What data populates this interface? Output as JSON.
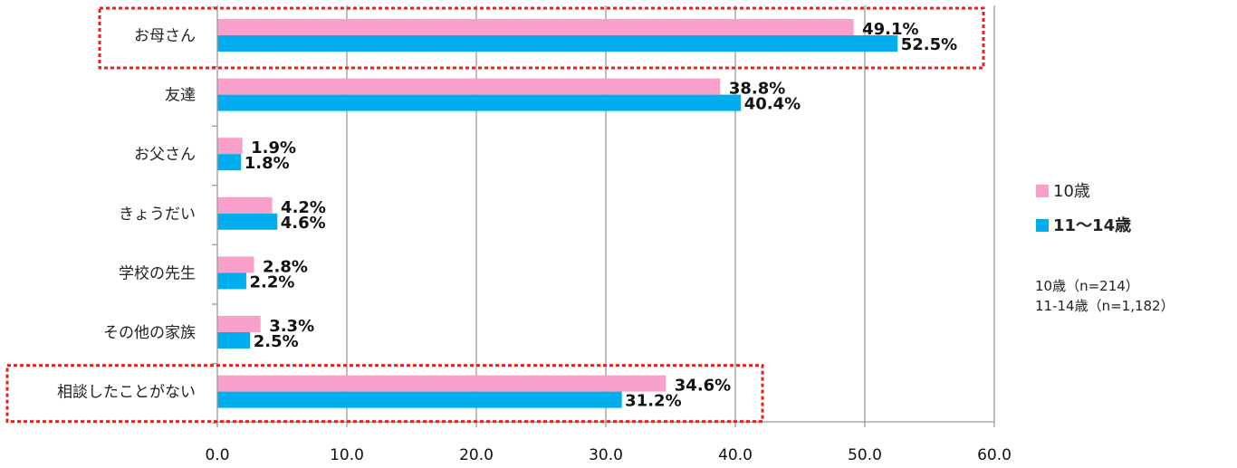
{
  "chart_data": {
    "type": "bar",
    "orientation": "horizontal",
    "categories": [
      "お母さん",
      "友達",
      "お父さん",
      "きょうだい",
      "学校の先生",
      "その他の家族",
      "相談したことがない"
    ],
    "series": [
      {
        "name": "10歳",
        "color": "#f99fcb",
        "values": [
          49.1,
          38.8,
          1.9,
          4.2,
          2.8,
          3.3,
          34.6
        ],
        "labels": [
          "49.1%",
          "38.8%",
          "1.9%",
          "4.2%",
          "2.8%",
          "3.3%",
          "34.6%"
        ]
      },
      {
        "name": "11〜14歳",
        "color": "#00aeef",
        "values": [
          52.5,
          40.4,
          1.8,
          4.6,
          2.2,
          2.5,
          31.2
        ],
        "labels": [
          "52.5%",
          "40.4%",
          "1.8%",
          "4.6%",
          "2.2%",
          "2.5%",
          "31.2%"
        ]
      }
    ],
    "xlim": [
      0,
      60
    ],
    "xticks": [
      0,
      10,
      20,
      30,
      40,
      50,
      60
    ],
    "xtick_labels": [
      "0.0",
      "10.0",
      "20.0",
      "30.0",
      "40.0",
      "50.0",
      "60.0"
    ],
    "grid": "vertical",
    "legend_position": "right",
    "highlighted_categories": [
      "お母さん",
      "相談したことがない"
    ],
    "highlight_color": "#e8201e",
    "notes": [
      "10歳（n=214）",
      "11-14歳（n=1,182）"
    ]
  }
}
